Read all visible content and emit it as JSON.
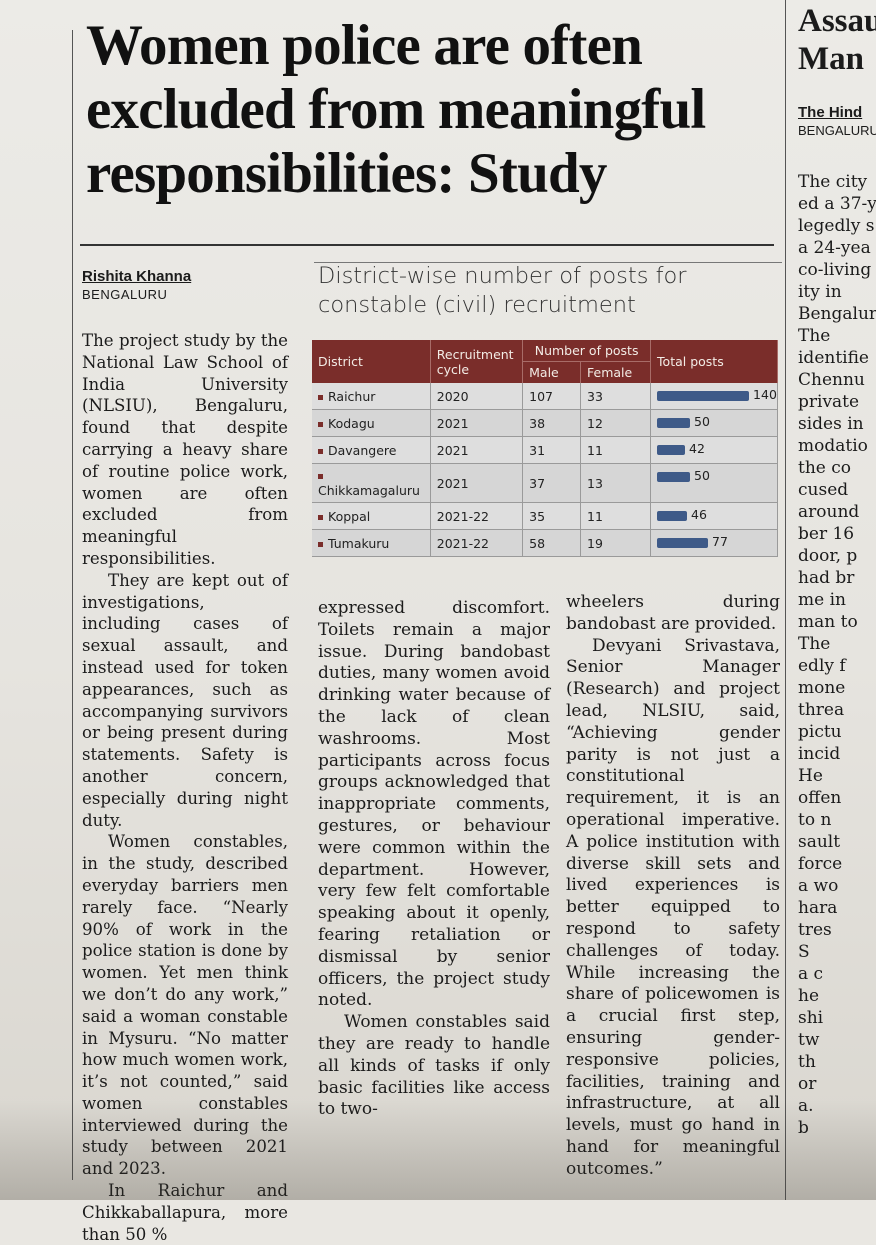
{
  "article": {
    "headline": "Women police are often excluded from meaningful responsibilities: Study",
    "author": "Rishita Khanna",
    "dateline": "BENGALURU",
    "col1": [
      "The project study by the National Law School of India University (NLSIU), Bengaluru, found that despite carrying a heavy share of routine police work, women are often excluded from meaningful responsibilities.",
      "They are kept out of investigations, including cases of sexual assault, and instead used for token appearances, such as accompanying survivors or being present during statements. Safety is another concern, especially during night duty.",
      "Women constables, in the study, described everyday barriers men rarely face. “Nearly 90% of work in the police station is done by women. Yet men think we don’t do any work,” said a woman constable in Mysuru. “No matter how much women work, it’s not counted,” said women constables interviewed during the study between 2021 and 2023.",
      "In Raichur and Chikkaballapura, more than 50 %"
    ],
    "col2": [
      "expressed discomfort. Toilets remain a major issue. During bandobast duties, many women avoid drinking water because of the lack of clean washrooms. Most participants across focus groups acknowledged that inappropriate comments, gestures, or behaviour were common within the department. However, very few felt comfortable speaking about it openly, fearing retaliation or dismissal by senior officers, the project study noted.",
      "Women constables said they are ready to handle all kinds of tasks if only basic facilities like access to two-"
    ],
    "col3": [
      "wheelers during bandobast are provided.",
      "Devyani Srivastava, Senior Manager (Research) and project lead, NLSIU, said, “Achieving gender parity is not just a constitutional requirement, it is an operational imperative. A police institution with diverse skill sets and lived experiences is better equipped to respond to safety challenges of today. While increasing the share of policewomen is a crucial first step, ensuring gender-responsive policies, facilities, training and infrastructure, at all levels, must go hand in hand for meaningful outcomes.”"
    ]
  },
  "chart_data": {
    "type": "table",
    "title": "District-wise number of posts for constable (civil) recruitment",
    "headers": {
      "district": "District",
      "cycle": "Recruitment cycle",
      "group": "Number of posts",
      "male": "Male",
      "female": "Female",
      "total": "Total posts"
    },
    "rows": [
      {
        "district": "Raichur",
        "cycle": "2020",
        "male": 107,
        "female": 33,
        "total": 140
      },
      {
        "district": "Kodagu",
        "cycle": "2021",
        "male": 38,
        "female": 12,
        "total": 50
      },
      {
        "district": "Davangere",
        "cycle": "2021",
        "male": 31,
        "female": 11,
        "total": 42
      },
      {
        "district": "Chikkamagaluru",
        "cycle": "2021",
        "male": 37,
        "female": 13,
        "total": 50
      },
      {
        "district": "Koppal",
        "cycle": "2021-22",
        "male": 35,
        "female": 11,
        "total": 46
      },
      {
        "district": "Tumakuru",
        "cycle": "2021-22",
        "male": 58,
        "female": 19,
        "total": 77
      }
    ],
    "max_total": 140,
    "bar_color": "#3e5a88",
    "header_color": "#7a2d2a"
  },
  "adjacent": {
    "headline": [
      "Assau",
      "Man"
    ],
    "author": "The Hind",
    "dateline": "BENGALURU",
    "lines": [
      "The city",
      "ed a 37-y",
      "legedly s",
      "a 24-yea",
      "co-living",
      "ity in",
      "Bengalur",
      "The",
      "identifie",
      "Chennu",
      "private",
      "sides in",
      "modatio",
      "the co",
      "cused",
      "around",
      "ber 16",
      "door, p",
      "had br",
      "me in",
      "man to",
      "The",
      "edly f",
      "mone",
      "threa",
      "pictu",
      "incid",
      "He",
      "offen",
      "to n",
      "sault",
      "force",
      "a wo",
      "hara",
      "tres",
      "S",
      "a c",
      "he",
      "shi",
      "tw",
      "th",
      "or",
      "a.",
      "b"
    ]
  }
}
